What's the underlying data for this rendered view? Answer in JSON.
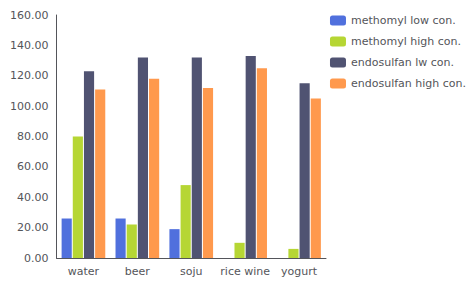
{
  "chart_data": {
    "type": "bar",
    "categories": [
      "water",
      "beer",
      "soju",
      "rice wine",
      "yogurt"
    ],
    "series": [
      {
        "name": "methomyl low con.",
        "values": [
          26,
          26,
          19,
          0,
          0
        ]
      },
      {
        "name": "methomyl high con.",
        "values": [
          80,
          22,
          48,
          10,
          6
        ]
      },
      {
        "name": "endosulfan lw con.",
        "values": [
          123,
          132,
          132,
          133,
          115
        ]
      },
      {
        "name": "endosulfan high con.",
        "values": [
          111,
          118,
          112,
          125,
          105
        ]
      }
    ],
    "ylim": [
      0,
      160
    ],
    "yticks": [
      {
        "value": 0,
        "label": "0.00"
      },
      {
        "value": 20,
        "label": "20.00"
      },
      {
        "value": 40,
        "label": "40.00"
      },
      {
        "value": 60,
        "label": "60.00"
      },
      {
        "value": 80,
        "label": "80.00"
      },
      {
        "value": 100,
        "label": "100.00"
      },
      {
        "value": 120,
        "label": "120.00"
      },
      {
        "value": 140,
        "label": "140.00"
      },
      {
        "value": 160,
        "label": "160.00"
      }
    ],
    "grid": false,
    "legend": "right"
  }
}
